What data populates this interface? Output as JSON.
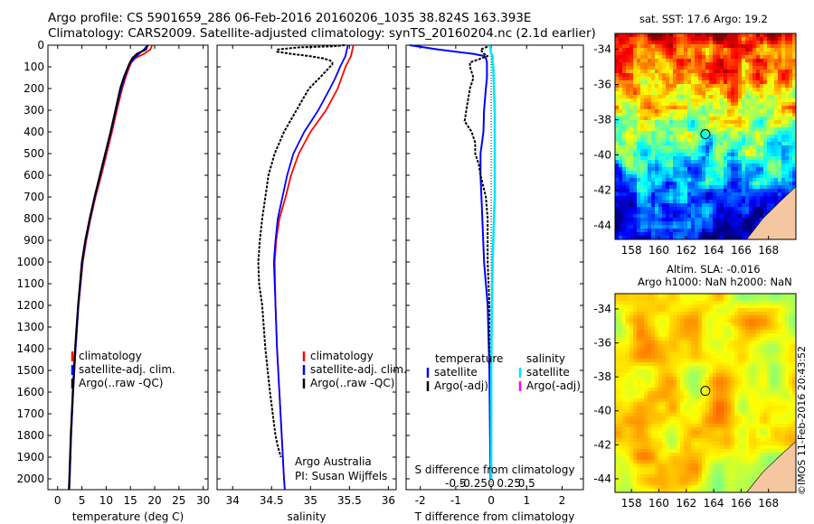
{
  "header": {
    "line1": "Argo profile: CS 5901659_286 06-Feb-2016 20160206_1035 38.824S 163.393E",
    "line2": "Climatology: CARS2009. Satellite-adjusted climatology: synTS_20160204.nc (2.1d earlier)"
  },
  "map_top": {
    "title": "sat. SST: 17.6 Argo: 19.2",
    "lon_ticks": [
      "158",
      "160",
      "162",
      "164",
      "166",
      "168"
    ],
    "lat_ticks": [
      "-34",
      "-36",
      "-38",
      "-40",
      "-42",
      "-44"
    ],
    "argo_position": {
      "lon": 163.393,
      "lat": -38.824
    }
  },
  "map_bottom": {
    "title1": "Altim. SLA: -0.016",
    "title2": "Argo h1000: NaN h2000: NaN",
    "lon_ticks": [
      "158",
      "160",
      "162",
      "164",
      "166",
      "168"
    ],
    "lat_ticks": [
      "-34",
      "-36",
      "-38",
      "-40",
      "-42",
      "-44"
    ],
    "argo_position": {
      "lon": 163.393,
      "lat": -38.824
    }
  },
  "stamp": "©IMOS 11-Feb-2016 20:43:52",
  "colors": {
    "climatology": "#ff0000",
    "satellite": "#0000ff",
    "argo": "#000000",
    "salinity_satellite": "#00e5ff",
    "salinity_argo": "#ff00ff"
  },
  "chart_data": [
    {
      "type": "line",
      "xlabel": "temperature (deg C)",
      "ylabel": "",
      "xlim": [
        -2,
        31
      ],
      "ylim": [
        2050,
        0
      ],
      "x_ticks": [
        0,
        5,
        10,
        15,
        20,
        25,
        30
      ],
      "x_tick_labels": [
        "0",
        "5",
        "10",
        "15",
        "20",
        "25",
        "30"
      ],
      "y_ticks": [
        0,
        100,
        200,
        300,
        400,
        500,
        600,
        700,
        800,
        900,
        1000,
        1100,
        1200,
        1300,
        1400,
        1500,
        1600,
        1700,
        1800,
        1900,
        2000
      ],
      "y_tick_labels": [
        "0",
        "100",
        "200",
        "300",
        "400",
        "500",
        "600",
        "700",
        "800",
        "900",
        "1000",
        "1100",
        "1200",
        "1300",
        "1400",
        "1500",
        "1600",
        "1700",
        "1800",
        "1900",
        "2000"
      ],
      "legend": [
        "climatology",
        "satellite-adj. clim.",
        "Argo(..raw -QC)"
      ],
      "series": [
        {
          "name": "climatology",
          "depth": [
            0,
            20,
            40,
            60,
            80,
            100,
            150,
            200,
            300,
            400,
            500,
            600,
            700,
            800,
            900,
            1000,
            1200,
            1400,
            1600,
            1800,
            2000,
            2050
          ],
          "values": [
            19.5,
            19.1,
            17.8,
            16.0,
            15.2,
            14.8,
            14.0,
            13.3,
            12.2,
            11.2,
            10.1,
            9.0,
            7.8,
            6.8,
            5.9,
            5.2,
            4.3,
            3.7,
            3.2,
            2.8,
            2.5,
            2.4
          ]
        },
        {
          "name": "satellite-adj. clim.",
          "depth": [
            0,
            20,
            40,
            60,
            80,
            100,
            150,
            200,
            300,
            400,
            500,
            600,
            700,
            800,
            900,
            1000,
            1200,
            1400,
            1600,
            1800,
            2000,
            2050
          ],
          "values": [
            18.5,
            17.8,
            16.8,
            15.8,
            15.0,
            14.6,
            13.8,
            13.1,
            12.0,
            11.0,
            9.9,
            8.8,
            7.7,
            6.7,
            5.8,
            5.1,
            4.3,
            3.7,
            3.2,
            2.8,
            2.5,
            2.4
          ]
        },
        {
          "name": "Argo(..raw -QC)",
          "depth": [
            0,
            20,
            40,
            60,
            80,
            100,
            150,
            200,
            300,
            400,
            500,
            600,
            700,
            800,
            900,
            1000,
            1200,
            1400,
            1600,
            1800,
            2000,
            2050
          ],
          "values": [
            18.6,
            18.2,
            16.3,
            15.4,
            14.9,
            14.5,
            13.6,
            12.9,
            11.9,
            10.9,
            9.8,
            8.7,
            7.6,
            6.6,
            5.7,
            5.0,
            4.2,
            3.6,
            3.1,
            2.7,
            2.4,
            2.3
          ]
        }
      ]
    },
    {
      "type": "line",
      "xlabel": "salinity",
      "ylabel": "",
      "xlim": [
        33.8,
        36.1
      ],
      "ylim": [
        2050,
        0
      ],
      "x_ticks": [
        34,
        34.5,
        35,
        35.5,
        36
      ],
      "x_tick_labels": [
        "34",
        "34.5",
        "35",
        "35.5",
        "36"
      ],
      "legend": [
        "climatology",
        "satellite-adj. clim.",
        "Argo(..raw -QC)"
      ],
      "annotation": [
        "Argo Australia",
        "PI: Susan Wijffels"
      ],
      "series": [
        {
          "name": "climatology",
          "depth": [
            0,
            50,
            100,
            150,
            200,
            300,
            400,
            500,
            600,
            700,
            800,
            900,
            1000,
            1200,
            1400,
            1600,
            1800,
            2000,
            2050
          ],
          "values": [
            35.55,
            35.52,
            35.45,
            35.4,
            35.35,
            35.2,
            35.0,
            34.85,
            34.75,
            34.68,
            34.6,
            34.56,
            34.54,
            34.55,
            34.57,
            34.6,
            34.63,
            34.66,
            34.67
          ]
        },
        {
          "name": "satellite-adj. clim.",
          "depth": [
            0,
            50,
            100,
            150,
            200,
            300,
            400,
            500,
            600,
            700,
            800,
            900,
            1000,
            1200,
            1400,
            1600,
            1800,
            2000,
            2050
          ],
          "values": [
            35.48,
            35.45,
            35.38,
            35.32,
            35.25,
            35.1,
            34.92,
            34.78,
            34.7,
            34.64,
            34.58,
            34.55,
            34.53,
            34.55,
            34.57,
            34.6,
            34.63,
            34.66,
            34.67
          ]
        },
        {
          "name": "Argo(..raw -QC)",
          "depth": [
            0,
            5,
            10,
            20,
            30,
            40,
            50,
            60,
            70,
            80,
            90,
            100,
            150,
            200,
            300,
            400,
            500,
            600,
            700,
            800,
            900,
            1000,
            1100,
            1200,
            1400,
            1600,
            1800,
            1850,
            1900
          ],
          "values": [
            35.44,
            35.3,
            34.85,
            34.58,
            34.57,
            34.75,
            34.98,
            35.15,
            35.25,
            35.28,
            35.28,
            35.25,
            35.12,
            34.98,
            34.82,
            34.66,
            34.54,
            34.46,
            34.42,
            34.38,
            34.35,
            34.33,
            34.34,
            34.38,
            34.42,
            34.48,
            34.55,
            34.58,
            34.62
          ]
        }
      ]
    },
    {
      "type": "line",
      "xlabel": "T difference from climatology",
      "xlabel2": "S difference from climatology",
      "xlim": [
        -2.4,
        2.6
      ],
      "ylim": [
        2050,
        0
      ],
      "x_ticks": [
        -2,
        -1,
        0,
        1,
        2
      ],
      "x_tick_labels": [
        "-2",
        "-1",
        "0",
        "1",
        "2"
      ],
      "x2_ticks": [
        -0.5,
        -0.25,
        0,
        0.25,
        0.5
      ],
      "x2_tick_labels": [
        "-0.5",
        "-0.25",
        "0",
        "0.25",
        "0.5"
      ],
      "legend_headers": [
        "temperature",
        "salinity"
      ],
      "legend": [
        "satellite",
        "Argo(-adj)",
        "satellite",
        "Argo(-adj)"
      ],
      "series": [
        {
          "name": "satellite",
          "variable": "temperature",
          "depth": [
            0,
            20,
            40,
            50,
            60,
            80,
            100,
            150,
            200,
            300,
            400,
            500,
            600,
            800,
            1000,
            1200,
            1500,
            2000
          ],
          "values": [
            -2.3,
            -1.5,
            -0.5,
            -0.2,
            -0.15,
            -0.12,
            -0.12,
            -0.12,
            -0.15,
            -0.2,
            -0.22,
            -0.3,
            -0.3,
            -0.25,
            -0.2,
            -0.1,
            -0.05,
            -0.02
          ]
        },
        {
          "name": "Argo(-adj)",
          "variable": "temperature",
          "depth": [
            0,
            20,
            40,
            50,
            80,
            100,
            150,
            200,
            300,
            350,
            400,
            450,
            500,
            550,
            600,
            700,
            800,
            1000,
            1200,
            1400,
            1600,
            1800,
            2000
          ],
          "values": [
            0.0,
            -0.3,
            -0.2,
            -0.1,
            -0.6,
            -0.6,
            -0.5,
            -0.6,
            -0.7,
            -0.75,
            -0.55,
            -0.45,
            -0.45,
            -0.35,
            -0.3,
            -0.15,
            -0.1,
            -0.1,
            -0.05,
            -0.05,
            0.0,
            0.0,
            0.0
          ]
        },
        {
          "name": "satellite",
          "variable": "salinity",
          "depth": [
            0,
            20,
            40,
            50,
            80,
            100,
            200,
            300,
            400,
            500,
            600,
            700,
            800,
            900,
            1000,
            1200,
            1500,
            2000
          ],
          "values": [
            -0.02,
            -0.01,
            0.0,
            0.02,
            0.02,
            0.03,
            0.04,
            0.05,
            0.05,
            0.05,
            0.05,
            0.05,
            0.04,
            0.03,
            0.02,
            0.01,
            0.0,
            0.0
          ]
        }
      ]
    }
  ]
}
